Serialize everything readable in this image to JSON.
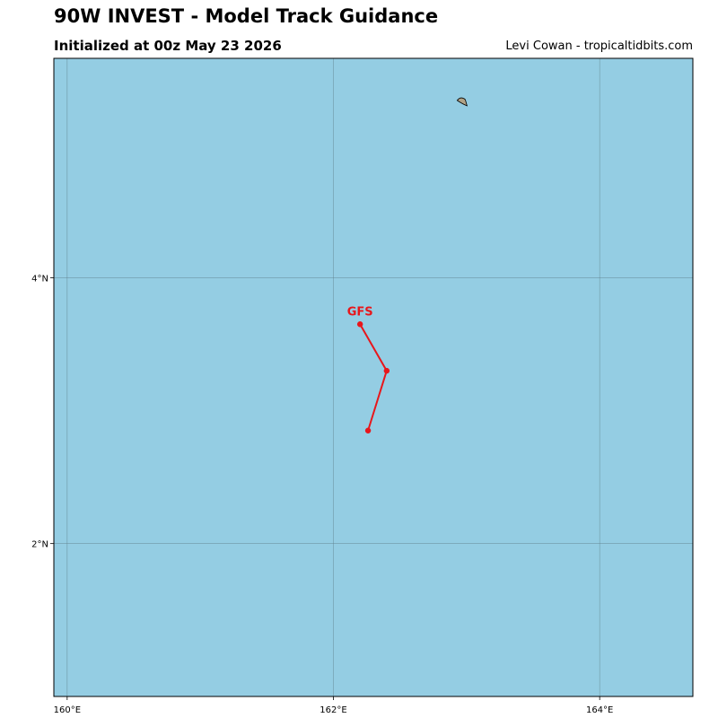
{
  "header": {
    "title": "90W INVEST - Model Track Guidance",
    "subtitle": "Initialized at 00z May 23 2026",
    "credit": "Levi Cowan - tropicaltidbits.com"
  },
  "map": {
    "extent": {
      "lon_min": 159.9,
      "lon_max": 164.7,
      "lat_min": 0.85,
      "lat_max": 5.65
    },
    "ocean_color": "#94cde3",
    "land_color": "#b2a386",
    "grid_color": "#5f7f8a",
    "lon_ticks": [
      {
        "value": 160,
        "label": "160°E"
      },
      {
        "value": 162,
        "label": "162°E"
      },
      {
        "value": 164,
        "label": "164°E"
      }
    ],
    "lat_ticks": [
      {
        "value": 4,
        "label": "4°N"
      },
      {
        "value": 2,
        "label": "2°N"
      }
    ],
    "island": {
      "lon": 162.97,
      "lat": 5.32
    }
  },
  "tracks": [
    {
      "name": "GFS",
      "color": "#e8161b",
      "points": [
        {
          "lon": 162.2,
          "lat": 3.65
        },
        {
          "lon": 162.4,
          "lat": 3.3
        },
        {
          "lon": 162.26,
          "lat": 2.85
        }
      ]
    }
  ]
}
